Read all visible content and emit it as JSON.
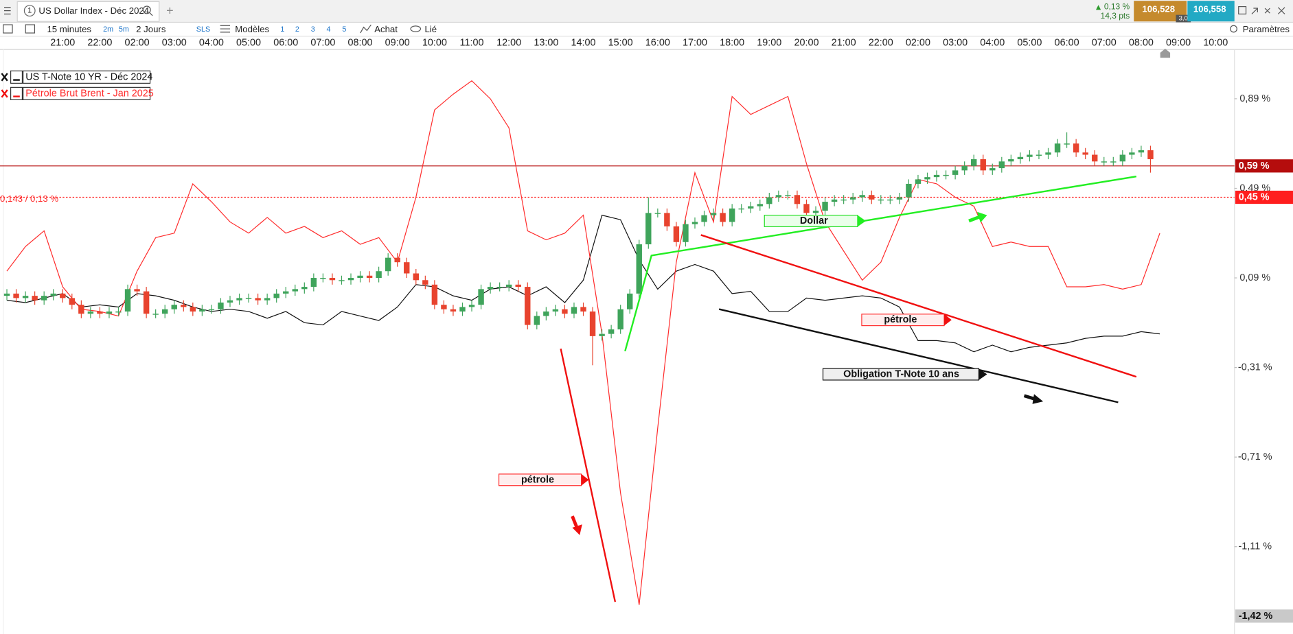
{
  "header": {
    "instrument_number": "1",
    "title": "US Dollar Index - Déc 2024",
    "change_pct": "0,13 %",
    "change_pts": "14,3 pts",
    "bid": "106,528",
    "spread": "3,0",
    "ask": "106,558"
  },
  "toolbar": {
    "interval": "15 minutes",
    "quick_intervals": [
      "2m",
      "5m"
    ],
    "period": "2 Jours",
    "sls": "SLS",
    "templates": "Modèles",
    "layouts": [
      "1",
      "2",
      "3",
      "4",
      "5"
    ],
    "buy": "Achat",
    "linked": "Lié",
    "settings": "Paramètres"
  },
  "chart_data": {
    "type": "candlestick",
    "time_labels": [
      "21:00",
      "22:00",
      "02:00",
      "03:00",
      "04:00",
      "05:00",
      "06:00",
      "07:00",
      "08:00",
      "09:00",
      "10:00",
      "11:00",
      "12:00",
      "13:00",
      "14:00",
      "15:00",
      "16:00",
      "17:00",
      "18:00",
      "19:00",
      "20:00",
      "21:00",
      "22:00",
      "02:00",
      "03:00",
      "04:00",
      "05:00",
      "06:00",
      "07:00",
      "08:00",
      "09:00",
      "10:00"
    ],
    "candles": {
      "up_color": "#3fa45b",
      "down_color": "#e8432e",
      "open": [
        0.01,
        0.02,
        0,
        0.01,
        -0.01,
        0.01,
        0.02,
        0,
        -0.03,
        -0.07,
        -0.06,
        -0.07,
        -0.06,
        -0.06,
        0.04,
        0.03,
        -0.07,
        -0.07,
        -0.05,
        -0.03,
        -0.04,
        -0.06,
        -0.05,
        -0.05,
        -0.02,
        -0.01,
        0,
        0,
        -0.01,
        0,
        0.02,
        0.03,
        0.04,
        0.05,
        0.09,
        0.09,
        0.08,
        0.08,
        0.09,
        0.1,
        0.09,
        0.12,
        0.18,
        0.16,
        0.11,
        0.08,
        0.06,
        -0.03,
        -0.05,
        -0.06,
        -0.04,
        -0.03,
        0.04,
        0.05,
        0.05,
        0.06,
        0.05,
        -0.12,
        -0.08,
        -0.06,
        -0.05,
        -0.07,
        -0.04,
        -0.06,
        -0.17,
        -0.16,
        -0.14,
        -0.05,
        0.02,
        0.24,
        0.38,
        0.38,
        0.32,
        0.25,
        0.33,
        0.34,
        0.37,
        0.38,
        0.34,
        0.4,
        0.4,
        0.41,
        0.42,
        0.45,
        0.46,
        0.46,
        0.42,
        0.38,
        0.39,
        0.43,
        0.44,
        0.44,
        0.45,
        0.46,
        0.44,
        0.44,
        0.44,
        0.45,
        0.51,
        0.53,
        0.54,
        0.55,
        0.55,
        0.57,
        0.59,
        0.62,
        0.57,
        0.58,
        0.61,
        0.62,
        0.63,
        0.64,
        0.64,
        0.65,
        0.69,
        0.69,
        0.65,
        0.64,
        0.61,
        0.61,
        0.61,
        0.64,
        0.65,
        0.66
      ],
      "high": [
        0.04,
        0.04,
        0.03,
        0.03,
        0.03,
        0.04,
        0.04,
        0.02,
        -0.01,
        -0.04,
        -0.04,
        -0.04,
        -0.04,
        0.06,
        0.06,
        0.05,
        -0.05,
        -0.03,
        -0.01,
        -0.01,
        -0.02,
        -0.03,
        -0.03,
        0,
        0.01,
        0.02,
        0.02,
        0.02,
        0.02,
        0.04,
        0.05,
        0.06,
        0.07,
        0.11,
        0.11,
        0.11,
        0.1,
        0.11,
        0.12,
        0.12,
        0.14,
        0.2,
        0.2,
        0.18,
        0.13,
        0.1,
        0.08,
        -0.01,
        -0.03,
        -0.02,
        -0.01,
        0.06,
        0.07,
        0.07,
        0.08,
        0.08,
        0.07,
        -0.06,
        -0.04,
        -0.03,
        -0.03,
        -0.02,
        -0.02,
        -0.04,
        -0.14,
        -0.12,
        -0.03,
        0.04,
        0.26,
        0.45,
        0.4,
        0.4,
        0.34,
        0.35,
        0.36,
        0.39,
        0.4,
        0.4,
        0.42,
        0.42,
        0.43,
        0.44,
        0.47,
        0.48,
        0.48,
        0.48,
        0.44,
        0.41,
        0.45,
        0.46,
        0.46,
        0.47,
        0.48,
        0.48,
        0.46,
        0.46,
        0.47,
        0.53,
        0.55,
        0.56,
        0.57,
        0.57,
        0.59,
        0.61,
        0.64,
        0.64,
        0.6,
        0.63,
        0.64,
        0.65,
        0.66,
        0.66,
        0.67,
        0.71,
        0.74,
        0.71,
        0.67,
        0.66,
        0.63,
        0.63,
        0.66,
        0.67,
        0.68,
        0.68
      ],
      "low": [
        -0.01,
        -0.02,
        -0.02,
        -0.03,
        -0.03,
        -0.01,
        -0.02,
        -0.05,
        -0.09,
        -0.09,
        -0.09,
        -0.09,
        -0.08,
        -0.08,
        0.01,
        -0.09,
        -0.09,
        -0.09,
        -0.07,
        -0.06,
        -0.08,
        -0.08,
        -0.07,
        -0.07,
        -0.04,
        -0.03,
        -0.02,
        -0.03,
        -0.03,
        -0.02,
        0,
        0.01,
        0.02,
        0.03,
        0.07,
        0.06,
        0.06,
        0.06,
        0.07,
        0.07,
        0.07,
        0.1,
        0.14,
        0.09,
        0.06,
        0.04,
        -0.05,
        -0.07,
        -0.08,
        -0.08,
        -0.06,
        -0.05,
        0.02,
        0.03,
        0.03,
        0.03,
        -0.14,
        -0.14,
        -0.1,
        -0.08,
        -0.09,
        -0.09,
        -0.08,
        -0.3,
        -0.19,
        -0.18,
        -0.16,
        -0.07,
        0,
        0.22,
        0.36,
        0.3,
        0.23,
        0.23,
        0.31,
        0.32,
        0.35,
        0.32,
        0.32,
        0.38,
        0.38,
        0.39,
        0.4,
        0.43,
        0.44,
        0.4,
        0.36,
        0.36,
        0.37,
        0.41,
        0.42,
        0.42,
        0.43,
        0.42,
        0.42,
        0.42,
        0.42,
        0.43,
        0.49,
        0.51,
        0.52,
        0.53,
        0.53,
        0.55,
        0.57,
        0.55,
        0.55,
        0.56,
        0.59,
        0.6,
        0.61,
        0.62,
        0.62,
        0.63,
        0.67,
        0.63,
        0.62,
        0.59,
        0.59,
        0.59,
        0.59,
        0.62,
        0.63,
        0.56
      ],
      "close": [
        0.02,
        0,
        0.01,
        -0.01,
        0.01,
        0.02,
        0,
        -0.03,
        -0.07,
        -0.06,
        -0.07,
        -0.06,
        -0.06,
        0.04,
        0.03,
        -0.07,
        -0.07,
        -0.05,
        -0.03,
        -0.04,
        -0.06,
        -0.05,
        -0.05,
        -0.02,
        -0.01,
        0,
        0,
        -0.01,
        0,
        0.02,
        0.03,
        0.04,
        0.05,
        0.09,
        0.09,
        0.08,
        0.08,
        0.09,
        0.1,
        0.09,
        0.12,
        0.18,
        0.16,
        0.11,
        0.08,
        0.06,
        -0.03,
        -0.05,
        -0.06,
        -0.04,
        -0.03,
        0.04,
        0.05,
        0.05,
        0.06,
        0.05,
        -0.12,
        -0.08,
        -0.06,
        -0.05,
        -0.07,
        -0.04,
        -0.06,
        -0.17,
        -0.16,
        -0.14,
        -0.05,
        0.02,
        0.24,
        0.38,
        0.38,
        0.32,
        0.25,
        0.33,
        0.34,
        0.37,
        0.38,
        0.34,
        0.4,
        0.4,
        0.41,
        0.42,
        0.45,
        0.46,
        0.46,
        0.42,
        0.38,
        0.39,
        0.43,
        0.44,
        0.44,
        0.45,
        0.46,
        0.44,
        0.44,
        0.44,
        0.45,
        0.51,
        0.53,
        0.54,
        0.55,
        0.55,
        0.57,
        0.59,
        0.62,
        0.57,
        0.58,
        0.61,
        0.62,
        0.63,
        0.64,
        0.64,
        0.65,
        0.69,
        0.69,
        0.65,
        0.64,
        0.61,
        0.61,
        0.61,
        0.64,
        0.65,
        0.66,
        0.62
      ]
    },
    "series": [
      {
        "name": "US T-Note 10 YR - Déc 2024",
        "color": "#111111",
        "values": [
          -0.01,
          -0.02,
          0,
          0.02,
          -0.04,
          -0.03,
          -0.04,
          0.02,
          0.01,
          -0.01,
          -0.04,
          -0.06,
          -0.05,
          -0.06,
          -0.09,
          -0.06,
          -0.11,
          -0.12,
          -0.06,
          -0.08,
          -0.1,
          -0.04,
          0.06,
          0.05,
          0.01,
          -0.01,
          0.04,
          0.05,
          0.01,
          0.05,
          -0.02,
          0.08,
          0.37,
          0.35,
          0.17,
          0.04,
          0.12,
          0.15,
          0.12,
          0.02,
          0.03,
          -0.06,
          -0.06,
          0,
          -0.01,
          0,
          0.01,
          0,
          -0.04,
          -0.19,
          -0.19,
          -0.2,
          -0.24,
          -0.21,
          -0.24,
          -0.22,
          -0.21,
          -0.2,
          -0.18,
          -0.17,
          -0.17,
          -0.15,
          -0.16
        ]
      },
      {
        "name": "Pétrole Brut Brent - Jan 2025",
        "color": "#ff2b2b",
        "values": [
          0.12,
          0.23,
          0.3,
          0.05,
          -0.05,
          -0.06,
          -0.08,
          0.12,
          0.27,
          0.29,
          0.51,
          0.43,
          0.34,
          0.29,
          0.36,
          0.29,
          0.32,
          0.27,
          0.3,
          0.24,
          0.27,
          0.16,
          0.45,
          0.84,
          0.91,
          0.97,
          0.89,
          0.76,
          0.3,
          0.26,
          0.29,
          0.37,
          -0.16,
          -0.87,
          -1.37,
          -0.58,
          0.16,
          0.56,
          0.34,
          0.9,
          0.82,
          0.86,
          0.9,
          0.6,
          0.34,
          0.21,
          0.08,
          0.16,
          0.36,
          0.53,
          0.51,
          0.45,
          0.41,
          0.23,
          0.25,
          0.23,
          0.23,
          0.05,
          0.05,
          0.06,
          0.04,
          0.06,
          0.29
        ]
      }
    ],
    "ylim": [
      -1.5,
      1.11
    ],
    "yticks": [
      {
        "value": 0.89,
        "label": "0,89 %"
      },
      {
        "value": 0.49,
        "label": "0,49 %"
      },
      {
        "value": 0.09,
        "label": "0,09 %"
      },
      {
        "value": -0.31,
        "label": "-0,31 %"
      },
      {
        "value": -0.71,
        "label": "-0,71 %"
      },
      {
        "value": -1.11,
        "label": "-1,11 %"
      }
    ],
    "price_lines": [
      {
        "value": 0.59,
        "label": "0,59 %",
        "color": "#b50d0d",
        "style": "solid"
      },
      {
        "value": 0.45,
        "label": "0,45 %",
        "color": "#ff1e1e",
        "style": "dotted"
      }
    ],
    "last_badge": {
      "value": -1.42,
      "label": "-1,42 %",
      "color": "#c9c9c9"
    },
    "crosshair_note": "0,143 / 0,13 %",
    "annotations": [
      "Dollar",
      "pétrole",
      "Obligation T-Note 10 ans",
      "pétrole"
    ]
  }
}
